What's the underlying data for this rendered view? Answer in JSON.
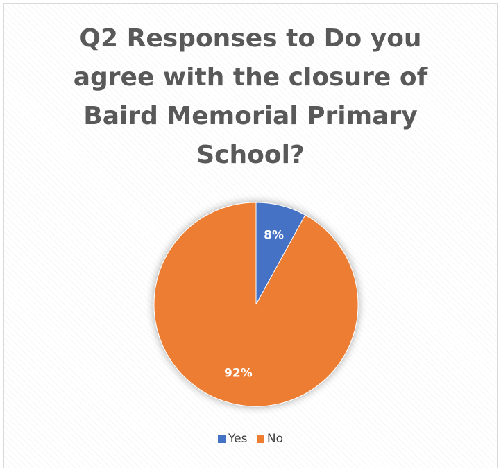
{
  "chart_data": {
    "type": "pie",
    "title_lines": [
      "Q2 Responses to Do you",
      "agree with the closure of",
      "Baird Memorial Primary",
      "School?"
    ],
    "categories": [
      "Yes",
      "No"
    ],
    "values": [
      8,
      92
    ],
    "data_labels": [
      "8%",
      "92%"
    ],
    "colors": [
      "#4472c4",
      "#ed7d31"
    ],
    "start_angle_deg": 0,
    "direction": "clockwise",
    "legend_position": "bottom"
  }
}
